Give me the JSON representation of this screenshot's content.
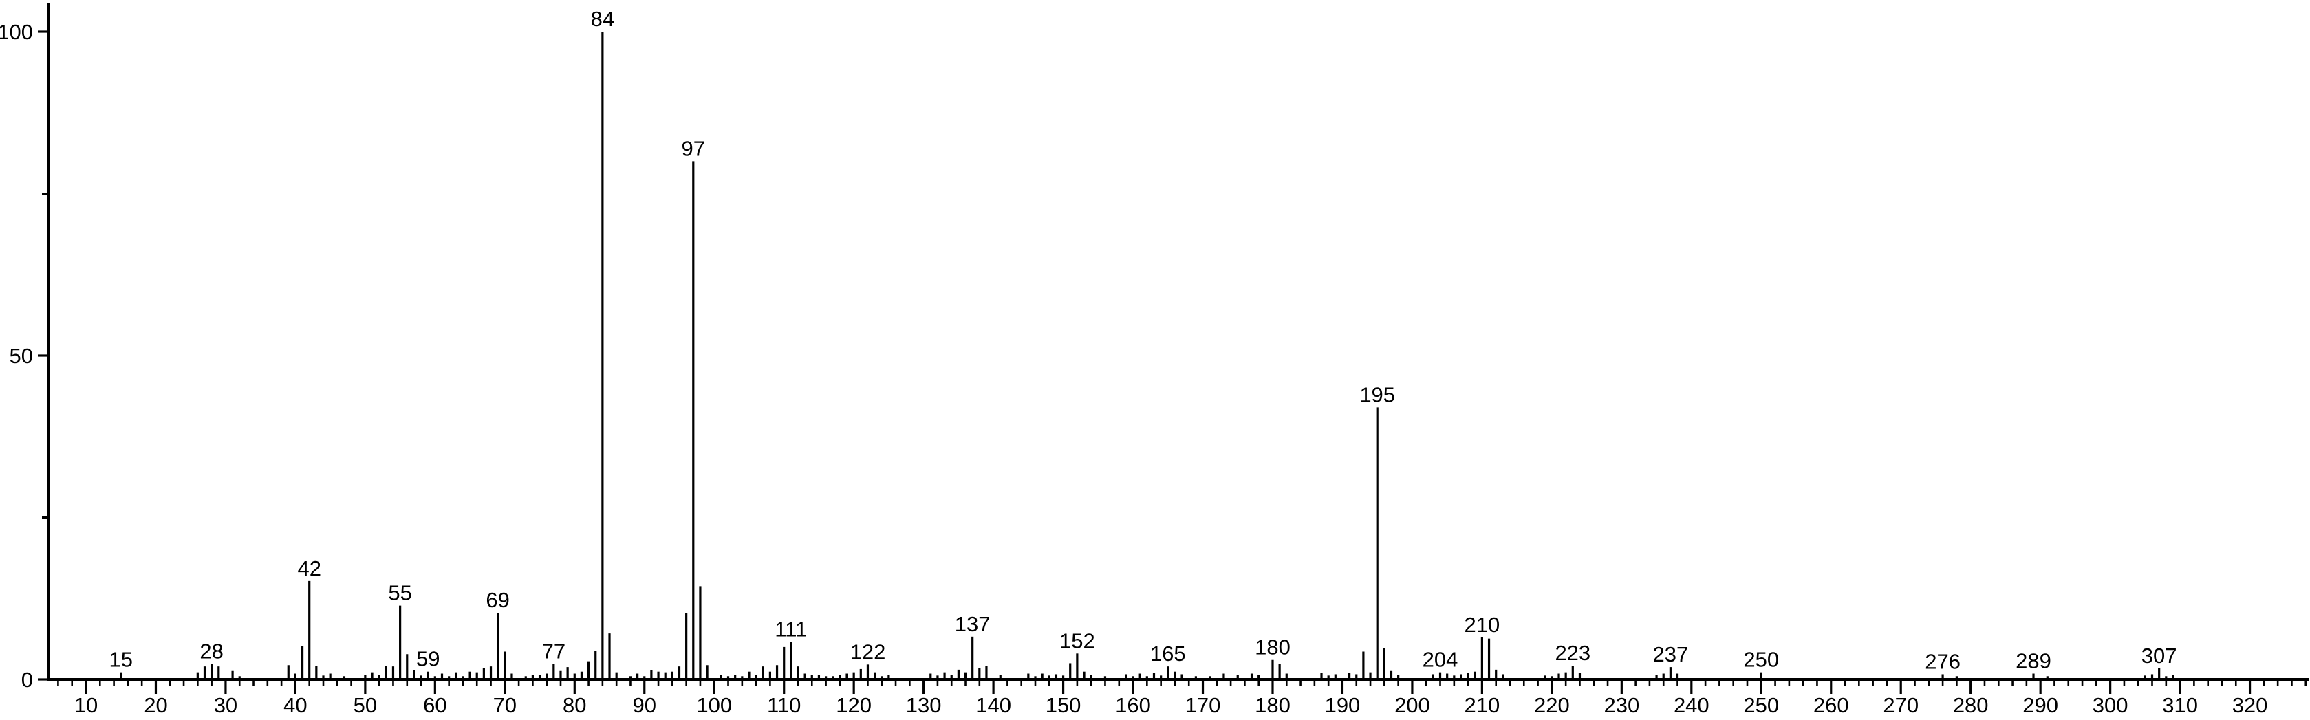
{
  "chart_data": {
    "type": "bar",
    "title": "",
    "description": "Electron-ionization mass spectrum, relative intensity (%) vs m/z",
    "background_color": "#ffffff",
    "foreground_color": "#000000",
    "grid": false,
    "legend": false,
    "x_axis": {
      "min": 4,
      "max": 329,
      "label_start": 10,
      "label_end": 320,
      "label_step": 10,
      "minor_tick_step": 2,
      "tick_labels": [
        10,
        20,
        30,
        40,
        50,
        60,
        70,
        80,
        90,
        100,
        110,
        120,
        130,
        140,
        150,
        160,
        170,
        180,
        190,
        200,
        210,
        220,
        230,
        240,
        250,
        260,
        270,
        280,
        290,
        300,
        310,
        320
      ]
    },
    "y_axis": {
      "min": 0,
      "max": 100,
      "major_ticks": [
        0,
        50,
        100
      ],
      "minor_ticks": [
        25,
        75
      ],
      "tick_labels": [
        "0",
        "50",
        "100"
      ]
    },
    "peaks": [
      [
        15,
        1.1
      ],
      [
        26,
        1.1
      ],
      [
        27,
        2.0
      ],
      [
        28,
        2.4
      ],
      [
        29,
        2.0
      ],
      [
        31,
        1.3
      ],
      [
        32,
        0.5
      ],
      [
        39,
        2.2
      ],
      [
        40,
        0.9
      ],
      [
        41,
        5.2
      ],
      [
        42,
        15.2
      ],
      [
        43,
        2.1
      ],
      [
        44,
        0.6
      ],
      [
        45,
        0.9
      ],
      [
        47,
        0.5
      ],
      [
        50,
        0.7
      ],
      [
        51,
        1.1
      ],
      [
        52,
        0.7
      ],
      [
        53,
        2.1
      ],
      [
        54,
        2.0
      ],
      [
        55,
        11.4
      ],
      [
        56,
        3.9
      ],
      [
        57,
        1.4
      ],
      [
        58,
        0.6
      ],
      [
        59,
        1.2
      ],
      [
        60,
        0.5
      ],
      [
        61,
        0.9
      ],
      [
        62,
        0.5
      ],
      [
        63,
        1.1
      ],
      [
        64,
        0.5
      ],
      [
        65,
        1.2
      ],
      [
        66,
        1.1
      ],
      [
        67,
        1.8
      ],
      [
        68,
        2.0
      ],
      [
        69,
        10.3
      ],
      [
        70,
        4.3
      ],
      [
        71,
        0.9
      ],
      [
        73,
        0.5
      ],
      [
        74,
        0.7
      ],
      [
        75,
        0.7
      ],
      [
        76,
        0.9
      ],
      [
        77,
        2.4
      ],
      [
        78,
        1.3
      ],
      [
        79,
        1.9
      ],
      [
        80,
        0.9
      ],
      [
        81,
        1.2
      ],
      [
        82,
        2.8
      ],
      [
        83,
        4.4
      ],
      [
        84,
        100
      ],
      [
        85,
        7.1
      ],
      [
        86,
        1.1
      ],
      [
        88,
        0.5
      ],
      [
        89,
        0.9
      ],
      [
        90,
        0.5
      ],
      [
        91,
        1.4
      ],
      [
        92,
        1.2
      ],
      [
        93,
        1.1
      ],
      [
        94,
        1.2
      ],
      [
        95,
        2.0
      ],
      [
        96,
        10.3
      ],
      [
        97,
        80
      ],
      [
        98,
        14.4
      ],
      [
        99,
        2.2
      ],
      [
        101,
        0.7
      ],
      [
        102,
        0.5
      ],
      [
        103,
        0.7
      ],
      [
        104,
        0.5
      ],
      [
        105,
        1.2
      ],
      [
        106,
        0.7
      ],
      [
        107,
        2.0
      ],
      [
        108,
        1.2
      ],
      [
        109,
        2.2
      ],
      [
        110,
        5.0
      ],
      [
        111,
        5.8
      ],
      [
        112,
        2.0
      ],
      [
        113,
        0.9
      ],
      [
        114,
        0.7
      ],
      [
        115,
        0.7
      ],
      [
        116,
        0.5
      ],
      [
        117,
        0.5
      ],
      [
        118,
        0.7
      ],
      [
        119,
        0.9
      ],
      [
        120,
        1.1
      ],
      [
        121,
        1.6
      ],
      [
        122,
        2.3
      ],
      [
        123,
        1.1
      ],
      [
        124,
        0.5
      ],
      [
        125,
        0.7
      ],
      [
        131,
        0.9
      ],
      [
        132,
        0.6
      ],
      [
        133,
        1.1
      ],
      [
        134,
        0.7
      ],
      [
        135,
        1.5
      ],
      [
        136,
        1.1
      ],
      [
        137,
        6.6
      ],
      [
        138,
        1.7
      ],
      [
        139,
        2.1
      ],
      [
        141,
        0.7
      ],
      [
        145,
        0.9
      ],
      [
        146,
        0.5
      ],
      [
        147,
        0.9
      ],
      [
        148,
        0.6
      ],
      [
        149,
        0.8
      ],
      [
        150,
        0.6
      ],
      [
        151,
        2.5
      ],
      [
        152,
        4.0
      ],
      [
        153,
        1.2
      ],
      [
        154,
        0.7
      ],
      [
        156,
        0.5
      ],
      [
        159,
        0.8
      ],
      [
        160,
        0.5
      ],
      [
        161,
        0.9
      ],
      [
        162,
        0.5
      ],
      [
        163,
        1.0
      ],
      [
        164,
        0.6
      ],
      [
        165,
        2.0
      ],
      [
        166,
        1.2
      ],
      [
        167,
        0.8
      ],
      [
        169,
        0.5
      ],
      [
        171,
        0.5
      ],
      [
        173,
        0.9
      ],
      [
        175,
        0.7
      ],
      [
        177,
        0.9
      ],
      [
        178,
        0.7
      ],
      [
        180,
        3.0
      ],
      [
        181,
        2.4
      ],
      [
        182,
        0.9
      ],
      [
        187,
        1.0
      ],
      [
        188,
        0.6
      ],
      [
        189,
        0.8
      ],
      [
        191,
        1.0
      ],
      [
        192,
        0.8
      ],
      [
        193,
        4.3
      ],
      [
        194,
        1.1
      ],
      [
        195,
        42
      ],
      [
        196,
        4.8
      ],
      [
        197,
        1.3
      ],
      [
        198,
        0.7
      ],
      [
        203,
        0.8
      ],
      [
        204,
        1.1
      ],
      [
        205,
        0.9
      ],
      [
        206,
        0.6
      ],
      [
        207,
        0.8
      ],
      [
        208,
        1.0
      ],
      [
        209,
        1.2
      ],
      [
        210,
        6.5
      ],
      [
        211,
        6.3
      ],
      [
        212,
        1.5
      ],
      [
        213,
        0.8
      ],
      [
        219,
        0.6
      ],
      [
        220,
        0.5
      ],
      [
        221,
        0.9
      ],
      [
        222,
        1.1
      ],
      [
        223,
        2.1
      ],
      [
        224,
        1.0
      ],
      [
        235,
        0.7
      ],
      [
        236,
        0.9
      ],
      [
        237,
        1.9
      ],
      [
        238,
        0.9
      ],
      [
        250,
        1.1
      ],
      [
        276,
        0.8
      ],
      [
        278,
        0.5
      ],
      [
        289,
        0.9
      ],
      [
        291,
        0.5
      ],
      [
        305,
        0.6
      ],
      [
        306,
        0.8
      ],
      [
        307,
        1.7
      ],
      [
        308,
        0.5
      ],
      [
        309,
        0.7
      ]
    ],
    "labeled_peaks": [
      15,
      28,
      42,
      55,
      59,
      69,
      77,
      84,
      97,
      111,
      122,
      137,
      152,
      165,
      180,
      195,
      204,
      210,
      223,
      237,
      250,
      276,
      289,
      307
    ]
  }
}
